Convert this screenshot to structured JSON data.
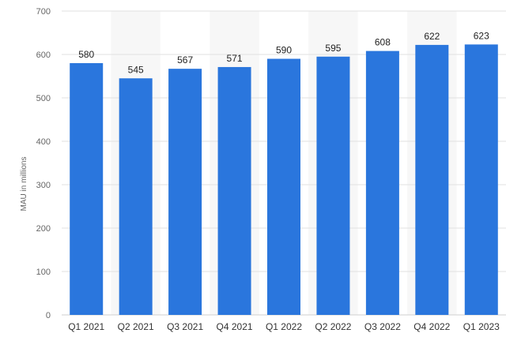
{
  "chart_data": {
    "type": "bar",
    "categories": [
      "Q1 2021",
      "Q2 2021",
      "Q3 2021",
      "Q4 2021",
      "Q1 2022",
      "Q2 2022",
      "Q3 2022",
      "Q4 2022",
      "Q1 2023"
    ],
    "values": [
      580,
      545,
      567,
      571,
      590,
      595,
      608,
      622,
      623
    ],
    "ylabel": "MAU in millions",
    "ylim": [
      0,
      700
    ],
    "yticks": [
      0,
      100,
      200,
      300,
      400,
      500,
      600,
      700
    ],
    "grid": true,
    "legend": "none",
    "data_labels": true
  },
  "colors": {
    "bar": "#2a76dd",
    "band": "#f7f7f7",
    "grid": "#e2e2e2"
  }
}
